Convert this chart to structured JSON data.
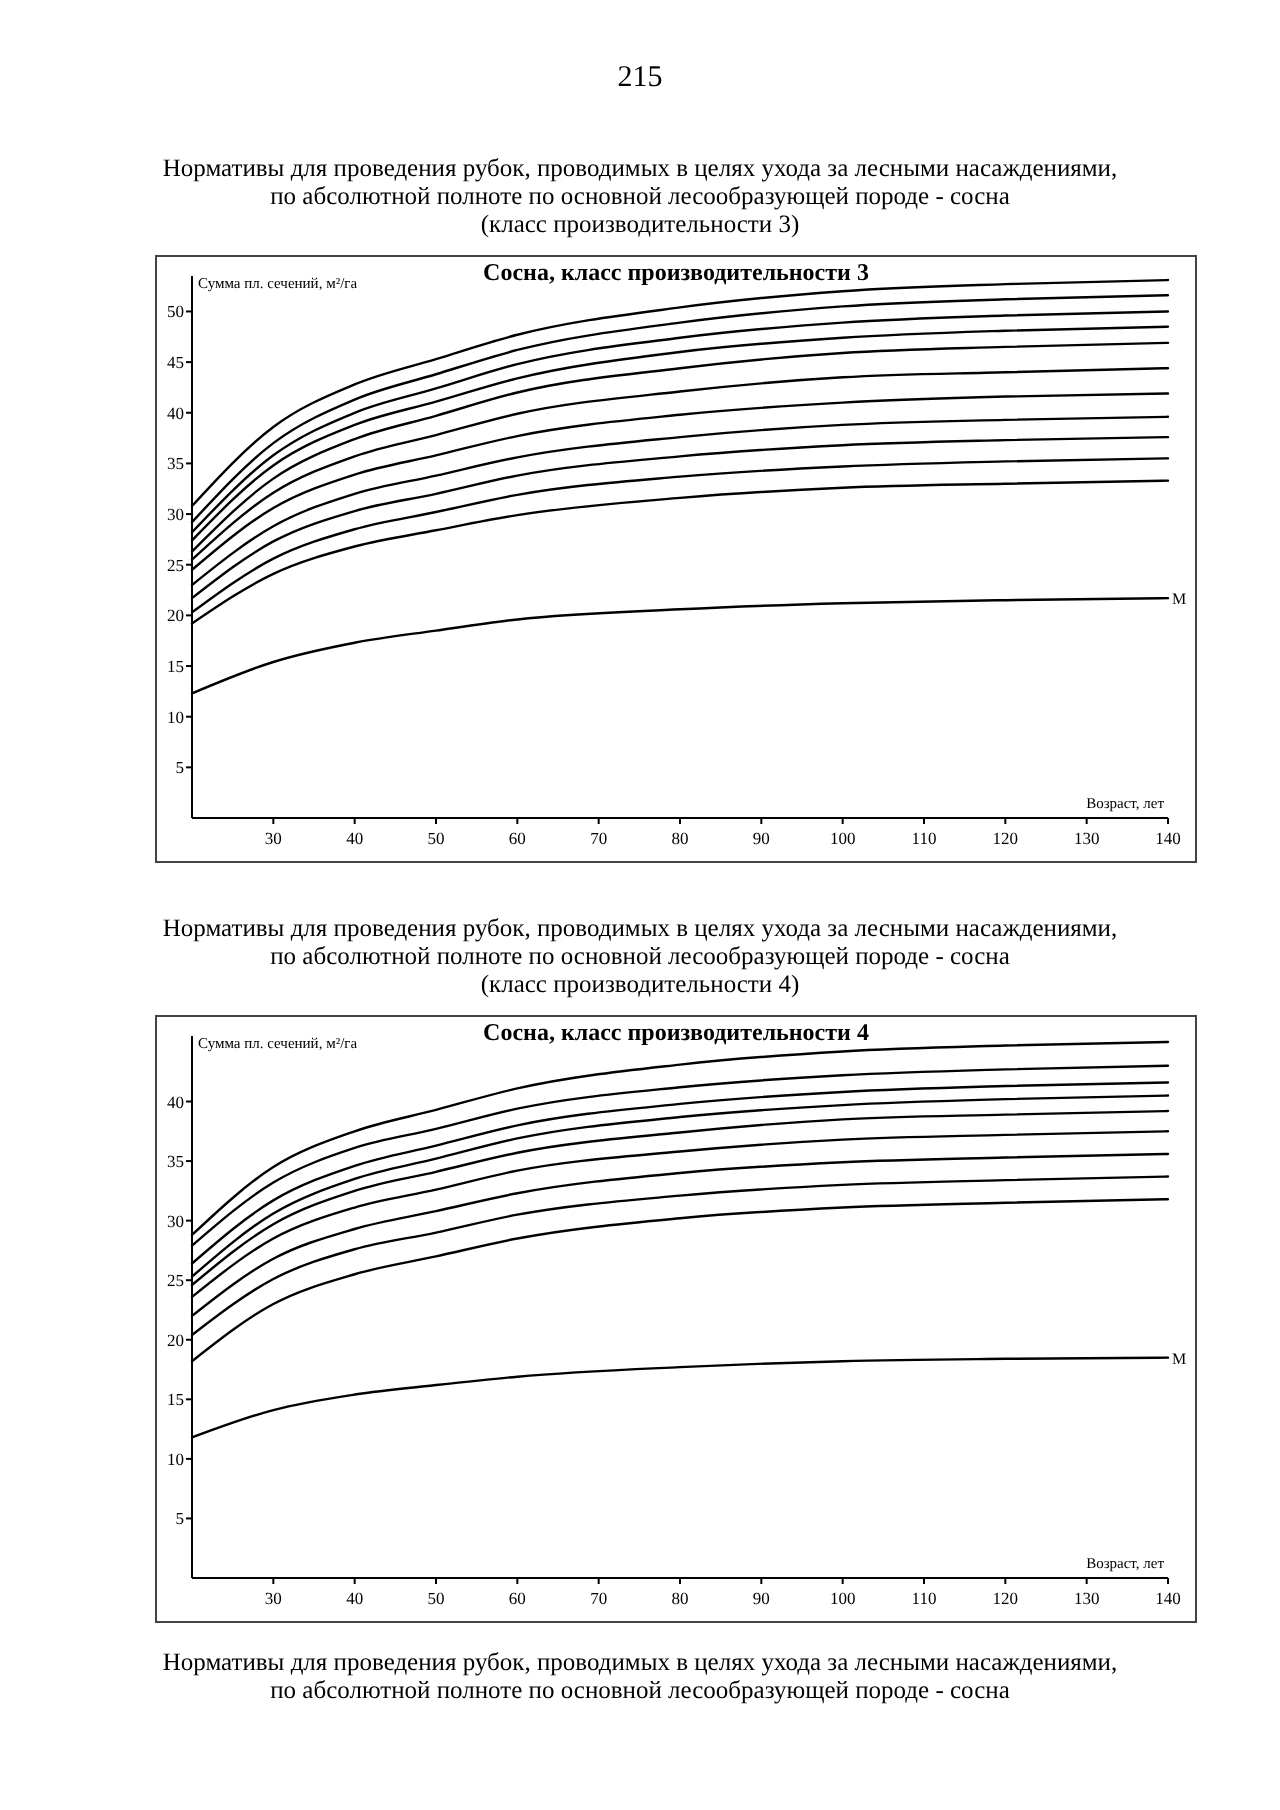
{
  "chart_data": [
    {
      "type": "line",
      "title": "Сосна, класс производительности 3",
      "subtitle": "Нормативы для проведения рубок, проводимых в целях ухода за лесными насаждениями,\nпо абсолютной полноте по основной лесообразующей породе - сосна\n(класс производительности 3)",
      "xlabel": "Возраст, лет",
      "ylabel": "Сумма пл. сечений, м²/га",
      "x": [
        20,
        30,
        40,
        50,
        60,
        80,
        100,
        120,
        140
      ],
      "xlim": [
        20,
        140
      ],
      "xticks": [
        30,
        40,
        50,
        60,
        70,
        80,
        90,
        100,
        110,
        120,
        130,
        140
      ],
      "ylim": [
        0,
        53.5
      ],
      "yticks": [
        5,
        10,
        15,
        20,
        25,
        30,
        35,
        40,
        45,
        50
      ],
      "grid": false,
      "annotations": [
        "215",
        {
          "text": "М",
          "x": 140,
          "y": 21.7
        }
      ],
      "series": [
        {
          "color": "#000000",
          "values": [
            30.8,
            38.6,
            42.8,
            45.3,
            47.7,
            50.4,
            52.0,
            52.7,
            53.1
          ]
        },
        {
          "color": "#000000",
          "values": [
            29.2,
            37.0,
            41.3,
            43.8,
            46.2,
            48.9,
            50.5,
            51.2,
            51.6
          ]
        },
        {
          "color": "#000000",
          "values": [
            28.2,
            35.8,
            40.0,
            42.4,
            44.8,
            47.4,
            48.9,
            49.6,
            50.0
          ]
        },
        {
          "color": "#000000",
          "values": [
            27.4,
            34.8,
            38.8,
            41.1,
            43.4,
            46.0,
            47.4,
            48.1,
            48.5
          ]
        },
        {
          "color": "#000000",
          "values": [
            26.3,
            33.5,
            37.4,
            39.7,
            42.0,
            44.4,
            45.9,
            46.5,
            46.9
          ]
        },
        {
          "color": "#000000",
          "values": [
            25.5,
            32.1,
            35.7,
            37.8,
            39.9,
            42.1,
            43.5,
            44.0,
            44.4
          ]
        },
        {
          "color": "#000000",
          "values": [
            24.5,
            30.6,
            33.9,
            35.8,
            37.7,
            39.8,
            41.0,
            41.6,
            41.9
          ]
        },
        {
          "color": "#000000",
          "values": [
            23.0,
            28.8,
            32.0,
            33.8,
            35.6,
            37.6,
            38.8,
            39.3,
            39.6
          ]
        },
        {
          "color": "#000000",
          "values": [
            21.7,
            27.3,
            30.3,
            32.0,
            33.8,
            35.7,
            36.8,
            37.3,
            37.6
          ]
        },
        {
          "color": "#000000",
          "values": [
            20.3,
            25.6,
            28.5,
            30.2,
            31.9,
            33.7,
            34.7,
            35.2,
            35.5
          ]
        },
        {
          "color": "#000000",
          "values": [
            19.2,
            24.1,
            26.8,
            28.4,
            29.9,
            31.6,
            32.6,
            33.0,
            33.3
          ]
        },
        {
          "color": "#000000",
          "values": [
            12.3,
            15.4,
            17.3,
            18.5,
            19.6,
            20.6,
            21.2,
            21.5,
            21.7
          ]
        }
      ]
    },
    {
      "type": "line",
      "title": "Сосна, класс производительности 4",
      "subtitle": "Нормативы для проведения рубок, проводимых в целях ухода за лесными насаждениями,\nпо абсолютной полноте по основной лесообразующей породе - сосна\n(класс производительности 4)",
      "xlabel": "Возраст, лет",
      "ylabel": "Сумма пл. сечений, м²/га",
      "x": [
        20,
        30,
        40,
        50,
        60,
        80,
        100,
        120,
        140
      ],
      "xlim": [
        20,
        140
      ],
      "xticks": [
        30,
        40,
        50,
        60,
        70,
        80,
        90,
        100,
        110,
        120,
        130,
        140
      ],
      "ylim": [
        0,
        45.5
      ],
      "yticks": [
        5,
        10,
        15,
        20,
        25,
        30,
        35,
        40
      ],
      "grid": false,
      "annotations": [
        {
          "text": "М",
          "x": 140,
          "y": 18.5
        },
        "Нормативы для проведения рубок, проводимых в целях ухода за лесными насаждениями,\nпо абсолютной полноте по основной лесообразующей породе - сосна"
      ],
      "series": [
        {
          "color": "#000000",
          "values": [
            28.8,
            34.5,
            37.5,
            39.3,
            41.1,
            43.1,
            44.2,
            44.7,
            45.0
          ]
        },
        {
          "color": "#000000",
          "values": [
            27.9,
            33.2,
            36.1,
            37.7,
            39.4,
            41.2,
            42.2,
            42.7,
            43.0
          ]
        },
        {
          "color": "#000000",
          "values": [
            26.4,
            31.7,
            34.6,
            36.3,
            38.0,
            39.8,
            40.8,
            41.3,
            41.6
          ]
        },
        {
          "color": "#000000",
          "values": [
            25.3,
            30.6,
            33.5,
            35.2,
            36.9,
            38.7,
            39.7,
            40.2,
            40.5
          ]
        },
        {
          "color": "#000000",
          "values": [
            24.6,
            29.7,
            32.5,
            34.1,
            35.7,
            37.4,
            38.5,
            38.9,
            39.2
          ]
        },
        {
          "color": "#000000",
          "values": [
            23.6,
            28.5,
            31.1,
            32.6,
            34.2,
            35.8,
            36.8,
            37.2,
            37.5
          ]
        },
        {
          "color": "#000000",
          "values": [
            22.0,
            26.8,
            29.3,
            30.8,
            32.3,
            34.0,
            34.9,
            35.3,
            35.6
          ]
        },
        {
          "color": "#000000",
          "values": [
            20.4,
            25.1,
            27.6,
            29.0,
            30.5,
            32.1,
            33.0,
            33.4,
            33.7
          ]
        },
        {
          "color": "#000000",
          "values": [
            18.2,
            23.0,
            25.5,
            27.0,
            28.5,
            30.2,
            31.1,
            31.5,
            31.8
          ]
        },
        {
          "color": "#000000",
          "values": [
            11.8,
            14.1,
            15.4,
            16.2,
            16.9,
            17.7,
            18.2,
            18.4,
            18.5
          ]
        }
      ]
    }
  ]
}
